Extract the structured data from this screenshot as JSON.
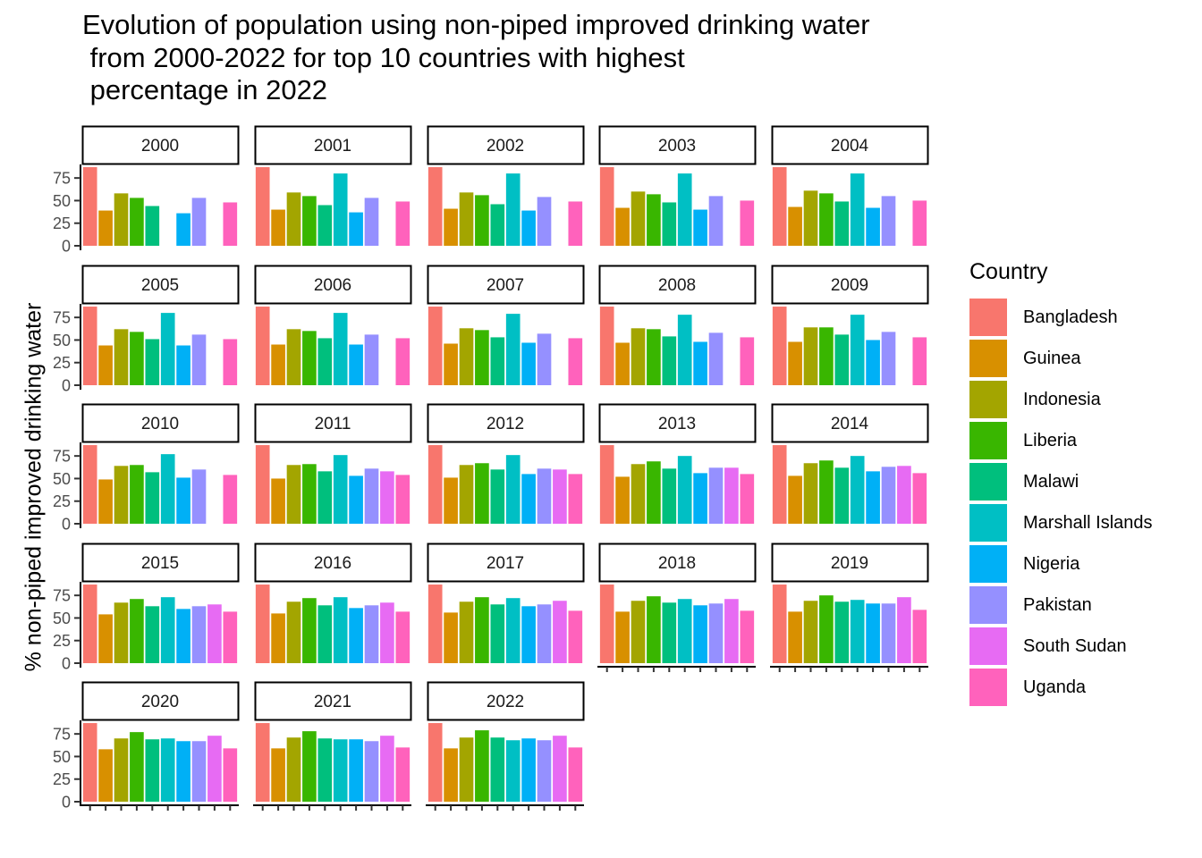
{
  "chart_data": {
    "type": "bar",
    "title": "Evolution of population using non-piped improved drinking water\n from 2000-2022 for top 10 countries with highest\n percentage in 2022",
    "ylabel": "% non-piped improved drinking water",
    "xlabel": "",
    "ylim": [
      0,
      90
    ],
    "yticks": [
      "0",
      "25",
      "50",
      "75"
    ],
    "legend_title": "Country",
    "legend_position": "right",
    "grid": false,
    "categories": [
      "Bangladesh",
      "Guinea",
      "Indonesia",
      "Liberia",
      "Malawi",
      "Marshall Islands",
      "Nigeria",
      "Pakistan",
      "South Sudan",
      "Uganda"
    ],
    "colors": [
      "#F8766D",
      "#D89000",
      "#A3A500",
      "#39B600",
      "#00BF7D",
      "#00BFC4",
      "#00B0F6",
      "#9590FF",
      "#E76BF3",
      "#FF62BC"
    ],
    "panels": [
      {
        "year": "2000",
        "values": [
          87,
          39,
          58,
          53,
          44,
          null,
          36,
          53,
          null,
          48
        ]
      },
      {
        "year": "2001",
        "values": [
          87,
          40,
          59,
          55,
          45,
          80,
          37,
          53,
          null,
          49
        ]
      },
      {
        "year": "2002",
        "values": [
          87,
          41,
          59,
          56,
          46,
          80,
          39,
          54,
          null,
          49
        ]
      },
      {
        "year": "2003",
        "values": [
          87,
          42,
          60,
          57,
          48,
          80,
          40,
          55,
          null,
          50
        ]
      },
      {
        "year": "2004",
        "values": [
          87,
          43,
          61,
          58,
          49,
          80,
          42,
          55,
          null,
          50
        ]
      },
      {
        "year": "2005",
        "values": [
          87,
          44,
          62,
          59,
          51,
          80,
          44,
          56,
          null,
          51
        ]
      },
      {
        "year": "2006",
        "values": [
          87,
          45,
          62,
          60,
          52,
          80,
          45,
          56,
          null,
          52
        ]
      },
      {
        "year": "2007",
        "values": [
          87,
          46,
          63,
          61,
          53,
          79,
          47,
          57,
          null,
          52
        ]
      },
      {
        "year": "2008",
        "values": [
          87,
          47,
          63,
          62,
          54,
          78,
          48,
          58,
          null,
          53
        ]
      },
      {
        "year": "2009",
        "values": [
          87,
          48,
          64,
          64,
          56,
          78,
          50,
          59,
          null,
          53
        ]
      },
      {
        "year": "2010",
        "values": [
          87,
          49,
          64,
          65,
          57,
          77,
          51,
          60,
          null,
          54
        ]
      },
      {
        "year": "2011",
        "values": [
          87,
          50,
          65,
          66,
          58,
          76,
          53,
          61,
          58,
          54
        ]
      },
      {
        "year": "2012",
        "values": [
          87,
          51,
          65,
          67,
          60,
          76,
          55,
          61,
          60,
          55
        ]
      },
      {
        "year": "2013",
        "values": [
          87,
          52,
          66,
          69,
          61,
          75,
          56,
          62,
          62,
          55
        ]
      },
      {
        "year": "2014",
        "values": [
          87,
          53,
          67,
          70,
          62,
          75,
          58,
          63,
          64,
          56
        ]
      },
      {
        "year": "2015",
        "values": [
          87,
          54,
          67,
          71,
          63,
          73,
          60,
          63,
          65,
          57
        ]
      },
      {
        "year": "2016",
        "values": [
          87,
          55,
          68,
          72,
          64,
          73,
          61,
          64,
          67,
          57
        ]
      },
      {
        "year": "2017",
        "values": [
          87,
          56,
          68,
          73,
          65,
          72,
          63,
          65,
          69,
          58
        ]
      },
      {
        "year": "2018",
        "values": [
          87,
          57,
          69,
          74,
          67,
          71,
          64,
          66,
          71,
          58
        ]
      },
      {
        "year": "2019",
        "values": [
          87,
          57,
          69,
          75,
          68,
          70,
          66,
          66,
          73,
          59
        ]
      },
      {
        "year": "2020",
        "values": [
          87,
          58,
          70,
          77,
          69,
          70,
          67,
          67,
          73,
          59
        ]
      },
      {
        "year": "2021",
        "values": [
          87,
          59,
          71,
          78,
          70,
          69,
          69,
          67,
          73,
          60
        ]
      },
      {
        "year": "2022",
        "values": [
          87,
          59,
          71,
          79,
          71,
          68,
          70,
          68,
          73,
          60
        ]
      }
    ]
  }
}
